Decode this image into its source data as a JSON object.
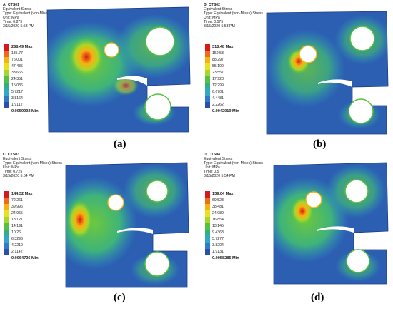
{
  "panels": [
    {
      "id": "a",
      "title": "A: CTS01",
      "result": "Equivalent Stress",
      "type": "Type: Equivalent (von-Mises) Stress",
      "unit": "Unit: MPa",
      "time": "Time: 0.875",
      "date": "3/15/2020 5:53 PM",
      "legend": [
        "268.49 Max",
        "135.77",
        "76.001",
        "47.435",
        "33.665",
        "24.351",
        "15.036",
        "5.7217",
        "3.8164",
        "1.9112",
        "0.0059092 Min"
      ],
      "caption": "(a)"
    },
    {
      "id": "b",
      "title": "B: CTS02",
      "result": "Equivalent Stress",
      "type": "Type: Equivalent (von-Mises) Stress",
      "unit": "Unit: MPa",
      "time": "Time: 0.575",
      "date": "3/15/2020 5:53 PM",
      "legend": [
        "315.48 Max",
        "159.53",
        "88.297",
        "55.109",
        "23.557",
        "17.928",
        "12.299",
        "6.6701",
        "4.4481",
        "2.2262",
        "0.0042019 Min"
      ],
      "caption": "(b)"
    },
    {
      "id": "c",
      "title": "C: CTS03",
      "result": "Equivalent Stress",
      "type": "Type: Equivalent (von-Mises) Stress",
      "unit": "Unit: MPa",
      "time": "Time: 0.725",
      "date": "3/15/2020 5:54 PM",
      "legend": [
        "144.32 Max",
        "72.261",
        "39.996",
        "24.965",
        "18.121",
        "14.191",
        "10.26",
        "6.3296",
        "4.2219",
        "2.1142",
        "0.0064726 Min"
      ],
      "caption": "(c)"
    },
    {
      "id": "d",
      "title": "D: CTS04",
      "result": "Equivalent Stress",
      "type": "Type: Equivalent (von-Mises) Stress",
      "unit": "Unit: MPa",
      "time": "Time: 0.5",
      "date": "3/15/2020 5:54 PM",
      "legend": [
        "139.04 Max",
        "69.523",
        "38.481",
        "24.089",
        "16.854",
        "13.145",
        "9.4363",
        "5.7277",
        "3.8204",
        "1.9131",
        "0.0058285 Min"
      ],
      "caption": "(d)"
    }
  ],
  "colors": {
    "legend_bands": [
      "#d7191c",
      "#ef6b1a",
      "#f9b10f",
      "#e6e21b",
      "#a8d62b",
      "#55c13e",
      "#2fb08a",
      "#32a8c9",
      "#2f7bc7",
      "#2a4fb0"
    ],
    "mesh_base": "#2c5fb2",
    "mesh_edge": "#1b3f86",
    "hole": "#ffffff"
  }
}
